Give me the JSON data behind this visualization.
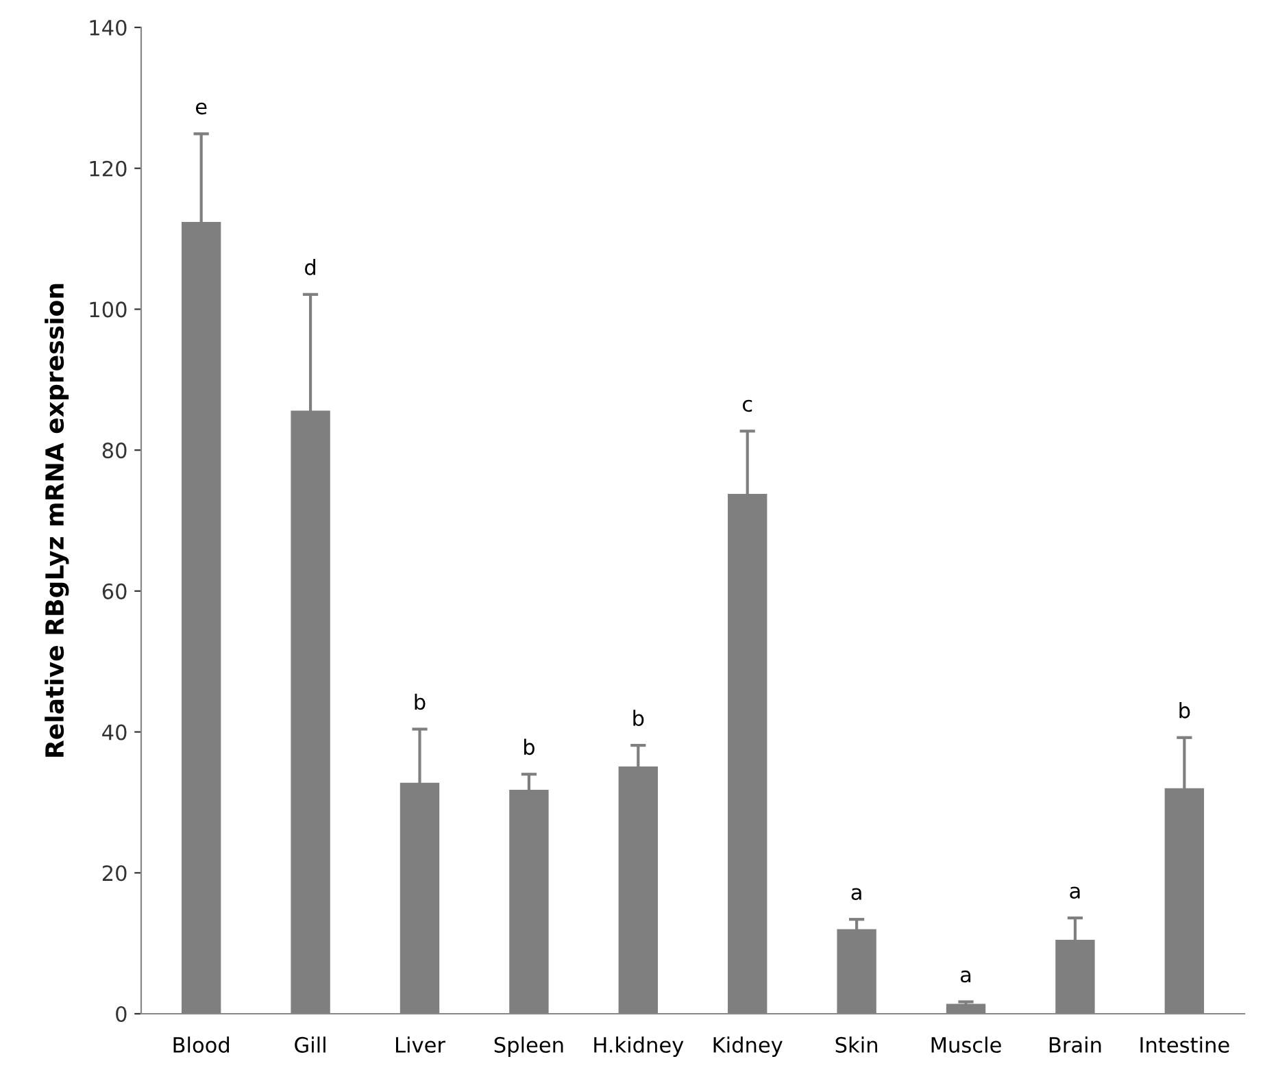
{
  "chart_data": {
    "type": "bar",
    "ylabel": "Relative RBgLyz mRNA expression",
    "categories": [
      "Blood",
      "Gill",
      "Liver",
      "Spleen",
      "H.kidney",
      "Kidney",
      "Skin",
      "Muscle",
      "Brain",
      "Intestine"
    ],
    "values": [
      112.4,
      85.6,
      32.8,
      31.8,
      35.1,
      73.8,
      12.0,
      1.4,
      10.5,
      32.0
    ],
    "errors": [
      12.5,
      16.5,
      7.6,
      2.2,
      3.0,
      8.9,
      1.4,
      0.3,
      3.1,
      7.2
    ],
    "color": "#7f7f7f",
    "ylim": [
      0,
      140
    ],
    "yticks": [
      0,
      20,
      40,
      60,
      80,
      100,
      120,
      140
    ],
    "grid": false,
    "legend": false,
    "annotations": [
      "e",
      "d",
      "b",
      "b",
      "b",
      "c",
      "a",
      "a",
      "a",
      "b"
    ]
  }
}
